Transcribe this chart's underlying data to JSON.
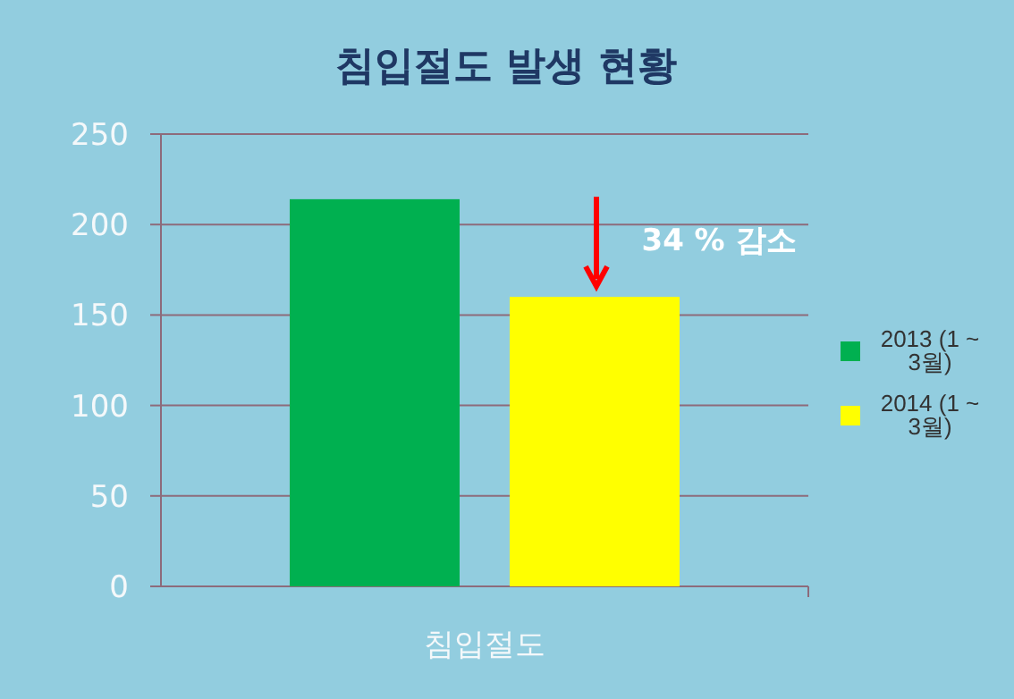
{
  "chart_data": {
    "type": "bar",
    "title": "침입절도 발생 현황",
    "categories": [
      "침입절도"
    ],
    "series": [
      {
        "name": "2013 (1 ~ 3월)",
        "color": "#00b050",
        "values": [
          214
        ]
      },
      {
        "name": "2014 (1 ~ 3월)",
        "color": "#ffff00",
        "values": [
          160
        ]
      }
    ],
    "ylim": [
      0,
      250
    ],
    "yticks": [
      0,
      50,
      100,
      150,
      200,
      250
    ],
    "grid": "y",
    "legend": "right",
    "annotations": [
      "34 % 감소"
    ]
  }
}
